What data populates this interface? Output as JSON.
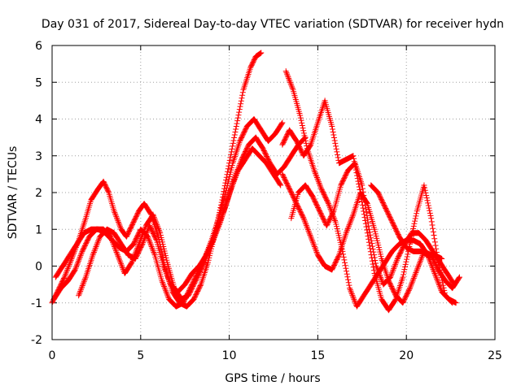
{
  "chart_data": {
    "type": "scatter",
    "title": "Day 031 of 2017, Sidereal Day-to-day VTEC variation (SDTVAR) for receiver hydn",
    "xlabel": "GPS time / hours",
    "ylabel": "SDTVAR / TECUs",
    "xlim": [
      0,
      25
    ],
    "ylim": [
      -2,
      6
    ],
    "xticks": [
      "0",
      "5",
      "10",
      "15",
      "20",
      "25"
    ],
    "yticks": [
      "-2",
      "-1",
      "0",
      "1",
      "2",
      "3",
      "4",
      "5",
      "6"
    ],
    "grid": true,
    "marker": "plus",
    "color": "#ff0000",
    "series": [
      {
        "x": [
          0.0,
          0.3,
          0.7,
          1.1,
          1.5,
          1.9,
          2.2,
          2.6,
          2.9,
          3.2,
          3.5,
          3.9,
          4.2,
          4.5,
          4.9,
          5.2,
          5.6,
          6.0,
          6.4,
          6.8,
          7.2,
          7.6,
          8.0,
          8.4,
          8.8,
          9.2,
          9.6,
          10.0,
          10.4,
          10.8,
          11.2,
          11.5,
          11.8
        ],
        "y": [
          -1.0,
          -0.7,
          -0.3,
          0.2,
          0.7,
          1.3,
          1.8,
          2.1,
          2.3,
          2.0,
          1.5,
          1.0,
          0.8,
          1.1,
          1.5,
          1.7,
          1.4,
          0.8,
          -0.1,
          -0.7,
          -1.0,
          -1.1,
          -0.9,
          -0.5,
          0.1,
          0.9,
          1.8,
          2.8,
          3.8,
          4.8,
          5.4,
          5.7,
          5.8
        ]
      },
      {
        "x": [
          0.2,
          0.6,
          1.0,
          1.4,
          1.8,
          2.2,
          2.6,
          3.0,
          3.4,
          3.8,
          4.2,
          4.6,
          5.0,
          5.4,
          5.8,
          6.2,
          6.6,
          7.0,
          7.4,
          7.8,
          8.2,
          8.6,
          9.0,
          9.4,
          9.8,
          10.2,
          10.6,
          11.0,
          11.4,
          11.8,
          12.2,
          12.6,
          13.0
        ],
        "y": [
          -0.3,
          0.0,
          0.3,
          0.6,
          0.9,
          1.0,
          1.0,
          0.9,
          0.7,
          0.5,
          0.4,
          0.6,
          1.0,
          0.8,
          0.3,
          -0.4,
          -0.9,
          -1.1,
          -1.0,
          -0.6,
          -0.2,
          0.2,
          0.7,
          1.3,
          2.0,
          2.8,
          3.4,
          3.8,
          4.0,
          3.7,
          3.4,
          3.6,
          3.9
        ]
      },
      {
        "x": [
          0.1,
          0.5,
          0.9,
          1.3,
          1.7,
          2.1,
          2.5,
          2.9,
          3.3,
          3.7,
          4.1,
          4.5,
          4.9,
          5.3,
          5.7,
          6.1,
          6.5,
          6.9,
          7.3,
          7.7,
          8.1,
          8.5,
          8.9,
          9.3,
          9.7,
          10.1,
          10.5,
          10.9,
          11.3,
          11.7,
          12.1,
          12.5,
          12.9
        ],
        "y": [
          -0.9,
          -0.6,
          -0.4,
          -0.1,
          0.4,
          0.8,
          1.0,
          1.0,
          0.8,
          0.3,
          -0.2,
          0.1,
          0.6,
          1.1,
          1.4,
          0.9,
          0.1,
          -0.6,
          -0.9,
          -0.8,
          -0.4,
          0.0,
          0.5,
          1.0,
          1.5,
          2.1,
          2.6,
          2.9,
          3.2,
          3.0,
          2.8,
          2.5,
          2.2
        ]
      },
      {
        "x": [
          1.5,
          1.9,
          2.3,
          2.7,
          3.1,
          3.5,
          3.9,
          4.3,
          4.7,
          5.1,
          5.5,
          5.9,
          6.3,
          6.7,
          7.1,
          7.5,
          7.9,
          8.3,
          8.7,
          9.1,
          9.5,
          9.9,
          10.3,
          10.7,
          11.1,
          11.5,
          11.9,
          12.3,
          12.7,
          13.1,
          13.5,
          13.9,
          14.3
        ],
        "y": [
          -0.8,
          -0.3,
          0.3,
          0.8,
          1.0,
          0.9,
          0.6,
          0.3,
          0.2,
          0.6,
          1.1,
          0.7,
          0.0,
          -0.5,
          -0.7,
          -0.5,
          -0.2,
          0.0,
          0.3,
          0.7,
          1.2,
          1.8,
          2.4,
          2.9,
          3.3,
          3.5,
          3.2,
          2.8,
          2.5,
          2.7,
          3.0,
          3.3,
          3.5
        ]
      },
      {
        "x": [
          13.2,
          13.6,
          14.0,
          14.4,
          14.8,
          15.2,
          15.6,
          16.0,
          16.4,
          16.8,
          17.2,
          17.6,
          18.0,
          18.4,
          18.8,
          19.2,
          19.6,
          20.0,
          20.4,
          20.8,
          21.2,
          21.6,
          22.0,
          22.4,
          22.8
        ],
        "y": [
          5.3,
          4.8,
          4.1,
          3.2,
          2.6,
          2.1,
          1.7,
          1.2,
          0.4,
          -0.6,
          -1.1,
          -0.8,
          -0.5,
          -0.2,
          0.1,
          0.4,
          0.6,
          0.7,
          0.7,
          0.6,
          0.3,
          -0.2,
          -0.7,
          -0.9,
          -1.0
        ]
      },
      {
        "x": [
          13.0,
          13.4,
          13.8,
          14.2,
          14.6,
          15.0,
          15.4,
          15.8,
          16.2,
          16.6,
          17.0,
          17.4,
          17.8,
          18.2,
          18.6,
          19.0,
          19.4,
          19.8,
          20.2,
          20.6,
          21.0,
          21.4,
          21.8,
          22.2,
          22.6
        ],
        "y": [
          3.3,
          3.7,
          3.4,
          3.0,
          3.3,
          3.9,
          4.5,
          3.8,
          2.8,
          2.9,
          3.0,
          2.0,
          0.9,
          -0.2,
          -0.9,
          -1.2,
          -0.9,
          -0.3,
          0.6,
          1.5,
          2.2,
          1.3,
          0.1,
          -0.8,
          -1.0
        ]
      },
      {
        "x": [
          13.5,
          13.9,
          14.3,
          14.7,
          15.1,
          15.5,
          15.9,
          16.3,
          16.7,
          17.1,
          17.5,
          17.9,
          18.3,
          18.7,
          19.1,
          19.5,
          19.9,
          20.3,
          20.7,
          21.1,
          21.5,
          21.9,
          22.3,
          22.7
        ],
        "y": [
          1.3,
          2.0,
          2.2,
          1.9,
          1.5,
          1.1,
          1.5,
          2.2,
          2.6,
          2.8,
          2.2,
          1.0,
          0.0,
          -0.5,
          -0.3,
          0.2,
          0.6,
          0.9,
          0.9,
          0.7,
          0.4,
          0.1,
          -0.2,
          -0.5
        ]
      },
      {
        "x": [
          13.0,
          13.4,
          13.8,
          14.2,
          14.6,
          15.0,
          15.4,
          15.8,
          16.2,
          16.6,
          17.0,
          17.4,
          17.8,
          18.2,
          18.6,
          19.0,
          19.4,
          19.8,
          20.2,
          20.6,
          21.0,
          21.4,
          21.8,
          22.2,
          22.6,
          23.0
        ],
        "y": [
          2.5,
          2.1,
          1.7,
          1.3,
          0.8,
          0.3,
          0.0,
          -0.1,
          0.3,
          0.9,
          1.4,
          2.0,
          1.7,
          1.0,
          0.2,
          -0.4,
          -0.8,
          -1.0,
          -0.6,
          -0.1,
          0.4,
          0.3,
          -0.1,
          -0.4,
          -0.6,
          -0.3
        ]
      },
      {
        "x": [
          18.0,
          18.4,
          18.8,
          19.2,
          19.6,
          20.0,
          20.4,
          20.8,
          21.2,
          21.6,
          22.0
        ],
        "y": [
          2.2,
          2.0,
          1.6,
          1.2,
          0.8,
          0.5,
          0.4,
          0.4,
          0.3,
          0.3,
          0.2
        ]
      }
    ]
  }
}
